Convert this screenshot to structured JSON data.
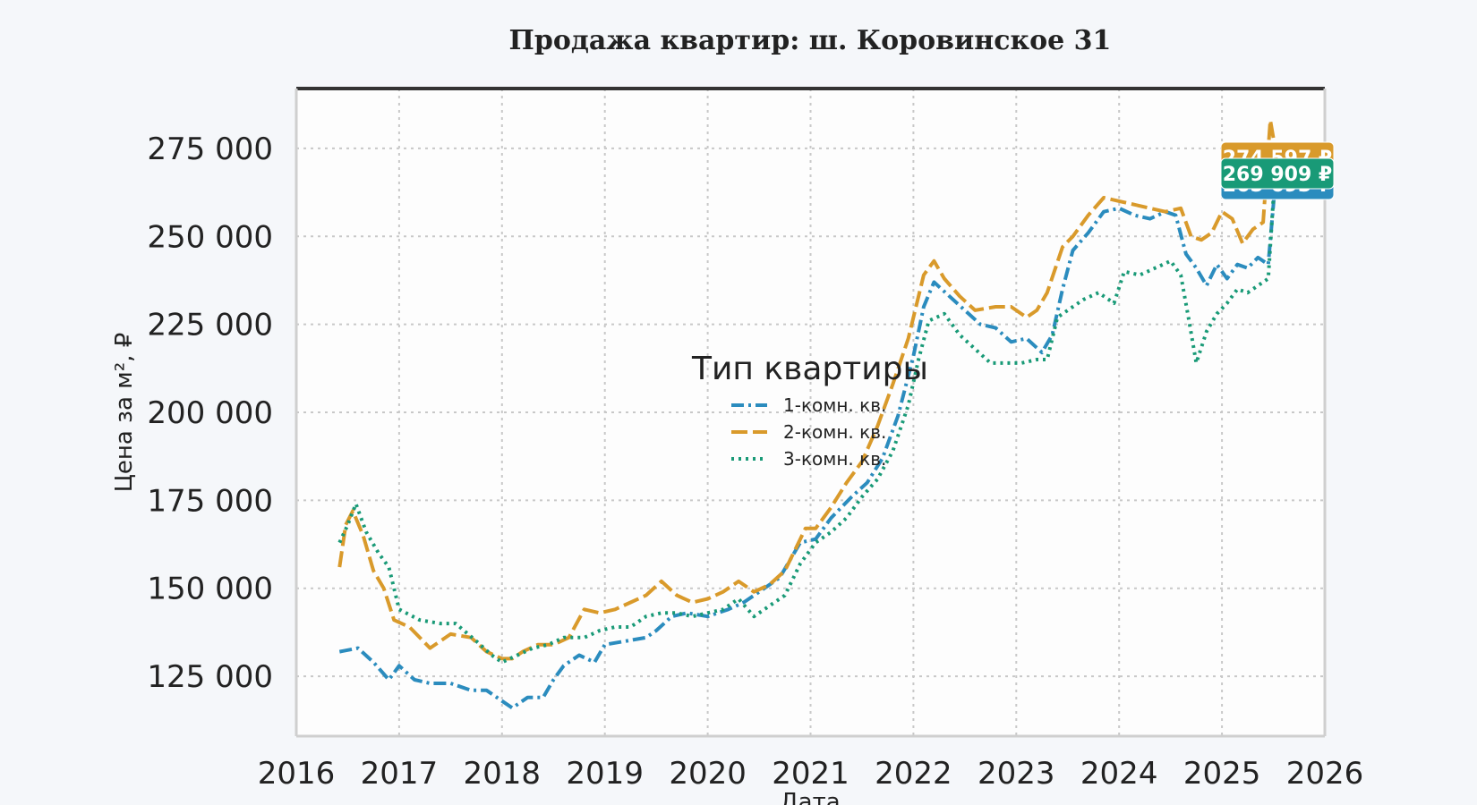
{
  "chart_data": {
    "type": "line",
    "title": "Продажа квартир: ш. Коровинское 31",
    "xlabel": "Дата",
    "ylabel": "Цена за м², ₽",
    "xlim": [
      2016,
      2026
    ],
    "ylim": [
      108000,
      292000
    ],
    "x_ticks": [
      "2016",
      "2017",
      "2018",
      "2019",
      "2020",
      "2021",
      "2022",
      "2023",
      "2024",
      "2025",
      "2026"
    ],
    "y_ticks": [
      {
        "value": 125000,
        "label": "125 000"
      },
      {
        "value": 150000,
        "label": "150 000"
      },
      {
        "value": 175000,
        "label": "175 000"
      },
      {
        "value": 200000,
        "label": "200 000"
      },
      {
        "value": 225000,
        "label": "225 000"
      },
      {
        "value": 250000,
        "label": "250 000"
      },
      {
        "value": 275000,
        "label": "275 000"
      }
    ],
    "grid": true,
    "legend": {
      "title": "Тип квартиры",
      "placement": "center"
    },
    "series": [
      {
        "name": "1-комн. кв.",
        "color": "#2b8cbe",
        "dash": "dashdot",
        "last_label": "265 693 ₽",
        "points": [
          [
            2016.42,
            132000
          ],
          [
            2016.6,
            133000
          ],
          [
            2016.75,
            129000
          ],
          [
            2016.9,
            124000
          ],
          [
            2017.0,
            128000
          ],
          [
            2017.15,
            124000
          ],
          [
            2017.3,
            123000
          ],
          [
            2017.5,
            123000
          ],
          [
            2017.7,
            121000
          ],
          [
            2017.85,
            121000
          ],
          [
            2018.0,
            118000
          ],
          [
            2018.1,
            116000
          ],
          [
            2018.25,
            119000
          ],
          [
            2018.4,
            119000
          ],
          [
            2018.5,
            124000
          ],
          [
            2018.6,
            128000
          ],
          [
            2018.75,
            131000
          ],
          [
            2018.9,
            129000
          ],
          [
            2019.0,
            134000
          ],
          [
            2019.2,
            135000
          ],
          [
            2019.4,
            136000
          ],
          [
            2019.5,
            138000
          ],
          [
            2019.65,
            142000
          ],
          [
            2019.8,
            143000
          ],
          [
            2020.0,
            142000
          ],
          [
            2020.2,
            144000
          ],
          [
            2020.35,
            146000
          ],
          [
            2020.5,
            149000
          ],
          [
            2020.7,
            153000
          ],
          [
            2020.9,
            163000
          ],
          [
            2021.05,
            164000
          ],
          [
            2021.2,
            170000
          ],
          [
            2021.4,
            176000
          ],
          [
            2021.55,
            180000
          ],
          [
            2021.7,
            187000
          ],
          [
            2021.85,
            199000
          ],
          [
            2022.0,
            216000
          ],
          [
            2022.1,
            230000
          ],
          [
            2022.2,
            237000
          ],
          [
            2022.35,
            233000
          ],
          [
            2022.5,
            229000
          ],
          [
            2022.65,
            225000
          ],
          [
            2022.8,
            224000
          ],
          [
            2022.95,
            220000
          ],
          [
            2023.1,
            221000
          ],
          [
            2023.25,
            217000
          ],
          [
            2023.35,
            222000
          ],
          [
            2023.45,
            235000
          ],
          [
            2023.55,
            246000
          ],
          [
            2023.7,
            251000
          ],
          [
            2023.85,
            257000
          ],
          [
            2024.0,
            258000
          ],
          [
            2024.15,
            256000
          ],
          [
            2024.3,
            255000
          ],
          [
            2024.45,
            257000
          ],
          [
            2024.55,
            256000
          ],
          [
            2024.65,
            245000
          ],
          [
            2024.75,
            241000
          ],
          [
            2024.85,
            236000
          ],
          [
            2024.95,
            242000
          ],
          [
            2025.05,
            238000
          ],
          [
            2025.15,
            242000
          ],
          [
            2025.25,
            241000
          ],
          [
            2025.35,
            244000
          ],
          [
            2025.45,
            242000
          ],
          [
            2025.52,
            265693
          ]
        ]
      },
      {
        "name": "2-комн. кв.",
        "color": "#d99a2b",
        "dash": "dash",
        "last_label": "274 597 ₽",
        "points": [
          [
            2016.42,
            156000
          ],
          [
            2016.48,
            168000
          ],
          [
            2016.55,
            172000
          ],
          [
            2016.65,
            165000
          ],
          [
            2016.75,
            155000
          ],
          [
            2016.85,
            150000
          ],
          [
            2016.95,
            141000
          ],
          [
            2017.1,
            139000
          ],
          [
            2017.3,
            133000
          ],
          [
            2017.5,
            137000
          ],
          [
            2017.7,
            136000
          ],
          [
            2017.85,
            132000
          ],
          [
            2018.0,
            130000
          ],
          [
            2018.1,
            130000
          ],
          [
            2018.2,
            132000
          ],
          [
            2018.35,
            134000
          ],
          [
            2018.5,
            134000
          ],
          [
            2018.65,
            136000
          ],
          [
            2018.8,
            144000
          ],
          [
            2018.95,
            143000
          ],
          [
            2019.1,
            144000
          ],
          [
            2019.25,
            146000
          ],
          [
            2019.4,
            148000
          ],
          [
            2019.55,
            152000
          ],
          [
            2019.7,
            148000
          ],
          [
            2019.85,
            146000
          ],
          [
            2020.0,
            147000
          ],
          [
            2020.15,
            149000
          ],
          [
            2020.3,
            152000
          ],
          [
            2020.45,
            149000
          ],
          [
            2020.6,
            151000
          ],
          [
            2020.75,
            155000
          ],
          [
            2020.85,
            161000
          ],
          [
            2020.95,
            167000
          ],
          [
            2021.05,
            167000
          ],
          [
            2021.2,
            173000
          ],
          [
            2021.35,
            180000
          ],
          [
            2021.5,
            186000
          ],
          [
            2021.65,
            196000
          ],
          [
            2021.8,
            208000
          ],
          [
            2021.95,
            221000
          ],
          [
            2022.1,
            239000
          ],
          [
            2022.2,
            243000
          ],
          [
            2022.3,
            238000
          ],
          [
            2022.45,
            233000
          ],
          [
            2022.6,
            229000
          ],
          [
            2022.8,
            230000
          ],
          [
            2022.95,
            230000
          ],
          [
            2023.1,
            227000
          ],
          [
            2023.2,
            229000
          ],
          [
            2023.3,
            234000
          ],
          [
            2023.45,
            247000
          ],
          [
            2023.55,
            250000
          ],
          [
            2023.7,
            256000
          ],
          [
            2023.85,
            261000
          ],
          [
            2024.0,
            260000
          ],
          [
            2024.15,
            259000
          ],
          [
            2024.3,
            258000
          ],
          [
            2024.45,
            257000
          ],
          [
            2024.6,
            258000
          ],
          [
            2024.7,
            250000
          ],
          [
            2024.8,
            249000
          ],
          [
            2024.9,
            251000
          ],
          [
            2025.0,
            257000
          ],
          [
            2025.1,
            255000
          ],
          [
            2025.2,
            248000
          ],
          [
            2025.3,
            252000
          ],
          [
            2025.4,
            254000
          ],
          [
            2025.47,
            283000
          ],
          [
            2025.52,
            274597
          ]
        ]
      },
      {
        "name": "3-комн. кв.",
        "color": "#199a77",
        "dash": "dot",
        "last_label": "269 909 ₽",
        "points": [
          [
            2016.42,
            163000
          ],
          [
            2016.5,
            168000
          ],
          [
            2016.58,
            174000
          ],
          [
            2016.68,
            166000
          ],
          [
            2016.8,
            160000
          ],
          [
            2016.9,
            156000
          ],
          [
            2017.0,
            144000
          ],
          [
            2017.2,
            141000
          ],
          [
            2017.4,
            140000
          ],
          [
            2017.55,
            140000
          ],
          [
            2017.75,
            135000
          ],
          [
            2017.9,
            131000
          ],
          [
            2018.0,
            129000
          ],
          [
            2018.15,
            131000
          ],
          [
            2018.3,
            133000
          ],
          [
            2018.45,
            134000
          ],
          [
            2018.6,
            136000
          ],
          [
            2018.8,
            136000
          ],
          [
            2018.95,
            138000
          ],
          [
            2019.1,
            139000
          ],
          [
            2019.25,
            139000
          ],
          [
            2019.4,
            142000
          ],
          [
            2019.55,
            143000
          ],
          [
            2019.7,
            143000
          ],
          [
            2019.85,
            142000
          ],
          [
            2020.0,
            143000
          ],
          [
            2020.15,
            144000
          ],
          [
            2020.3,
            147000
          ],
          [
            2020.45,
            142000
          ],
          [
            2020.6,
            145000
          ],
          [
            2020.75,
            148000
          ],
          [
            2020.9,
            157000
          ],
          [
            2021.05,
            163000
          ],
          [
            2021.2,
            166000
          ],
          [
            2021.35,
            170000
          ],
          [
            2021.5,
            176000
          ],
          [
            2021.65,
            181000
          ],
          [
            2021.8,
            189000
          ],
          [
            2021.95,
            202000
          ],
          [
            2022.05,
            215000
          ],
          [
            2022.15,
            226000
          ],
          [
            2022.3,
            228000
          ],
          [
            2022.45,
            222000
          ],
          [
            2022.6,
            218000
          ],
          [
            2022.75,
            214000
          ],
          [
            2022.9,
            214000
          ],
          [
            2023.05,
            214000
          ],
          [
            2023.2,
            215000
          ],
          [
            2023.3,
            215000
          ],
          [
            2023.4,
            227000
          ],
          [
            2023.5,
            229000
          ],
          [
            2023.65,
            232000
          ],
          [
            2023.8,
            234000
          ],
          [
            2023.95,
            231000
          ],
          [
            2024.05,
            240000
          ],
          [
            2024.2,
            239000
          ],
          [
            2024.35,
            241000
          ],
          [
            2024.5,
            243000
          ],
          [
            2024.6,
            239000
          ],
          [
            2024.68,
            226000
          ],
          [
            2024.75,
            214000
          ],
          [
            2024.85,
            223000
          ],
          [
            2024.95,
            228000
          ],
          [
            2025.05,
            231000
          ],
          [
            2025.15,
            235000
          ],
          [
            2025.25,
            234000
          ],
          [
            2025.35,
            236000
          ],
          [
            2025.45,
            238000
          ],
          [
            2025.52,
            269909
          ]
        ]
      }
    ]
  }
}
